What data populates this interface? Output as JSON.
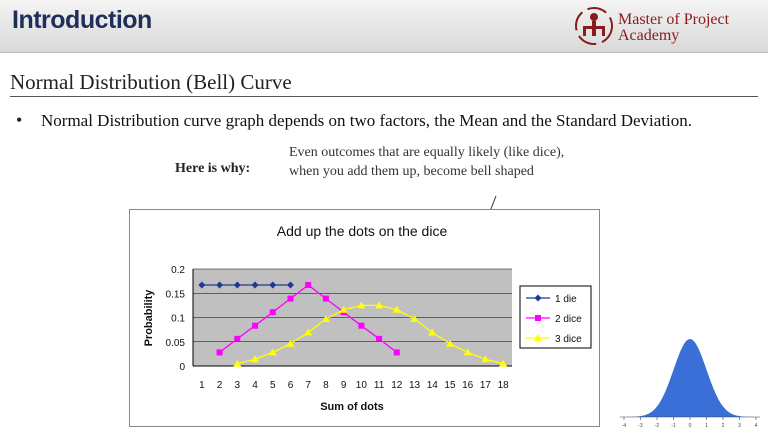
{
  "header": {
    "title": "Introduction",
    "logo_line1": "Master of Project",
    "logo_line2": "Academy"
  },
  "slide": {
    "subtitle": "Normal Distribution (Bell) Curve",
    "bullet": "Normal Distribution curve graph depends on two factors, the Mean and the Standard Deviation.",
    "why_label": "Here is why:",
    "callout": "Even outcomes that are equally likely (like dice), when you add them up, become bell shaped"
  },
  "colors": {
    "title": "#1e2f5a",
    "logo": "#8b1a1a",
    "plot_bg": "#c0c0c0",
    "series_1": "#1f3a93",
    "series_2": "#ff00ff",
    "series_3": "#ffff00",
    "bell": "#3a6fd8"
  },
  "chart_data": [
    {
      "type": "line",
      "title": "Add up the dots on the dice",
      "xlabel": "Sum of dots",
      "ylabel": "Probability",
      "x": [
        1,
        2,
        3,
        4,
        5,
        6,
        7,
        8,
        9,
        10,
        11,
        12,
        13,
        14,
        15,
        16,
        17,
        18
      ],
      "ylim": [
        0,
        0.2
      ],
      "yticks": [
        "0",
        "0.05",
        "0.1",
        "0.15",
        "0.2"
      ],
      "grid": true,
      "legend": "right",
      "series": [
        {
          "name": "1 die",
          "x": [
            1,
            2,
            3,
            4,
            5,
            6
          ],
          "values": [
            0.167,
            0.167,
            0.167,
            0.167,
            0.167,
            0.167
          ]
        },
        {
          "name": "2 dice",
          "x": [
            2,
            3,
            4,
            5,
            6,
            7,
            8,
            9,
            10,
            11,
            12
          ],
          "values": [
            0.028,
            0.056,
            0.083,
            0.111,
            0.139,
            0.167,
            0.139,
            0.111,
            0.083,
            0.056,
            0.028
          ]
        },
        {
          "name": "3 dice",
          "x": [
            3,
            4,
            5,
            6,
            7,
            8,
            9,
            10,
            11,
            12,
            13,
            14,
            15,
            16,
            17,
            18
          ],
          "values": [
            0.005,
            0.014,
            0.028,
            0.046,
            0.069,
            0.097,
            0.116,
            0.125,
            0.125,
            0.116,
            0.097,
            0.069,
            0.046,
            0.028,
            0.014,
            0.005
          ]
        }
      ]
    },
    {
      "type": "area",
      "x": [
        -4,
        -3,
        -2,
        -1,
        0,
        1,
        2,
        3,
        4
      ],
      "ticks": [
        "-4",
        "-3",
        "-2",
        "-1",
        "0",
        "1",
        "2",
        "3",
        "4"
      ]
    }
  ]
}
